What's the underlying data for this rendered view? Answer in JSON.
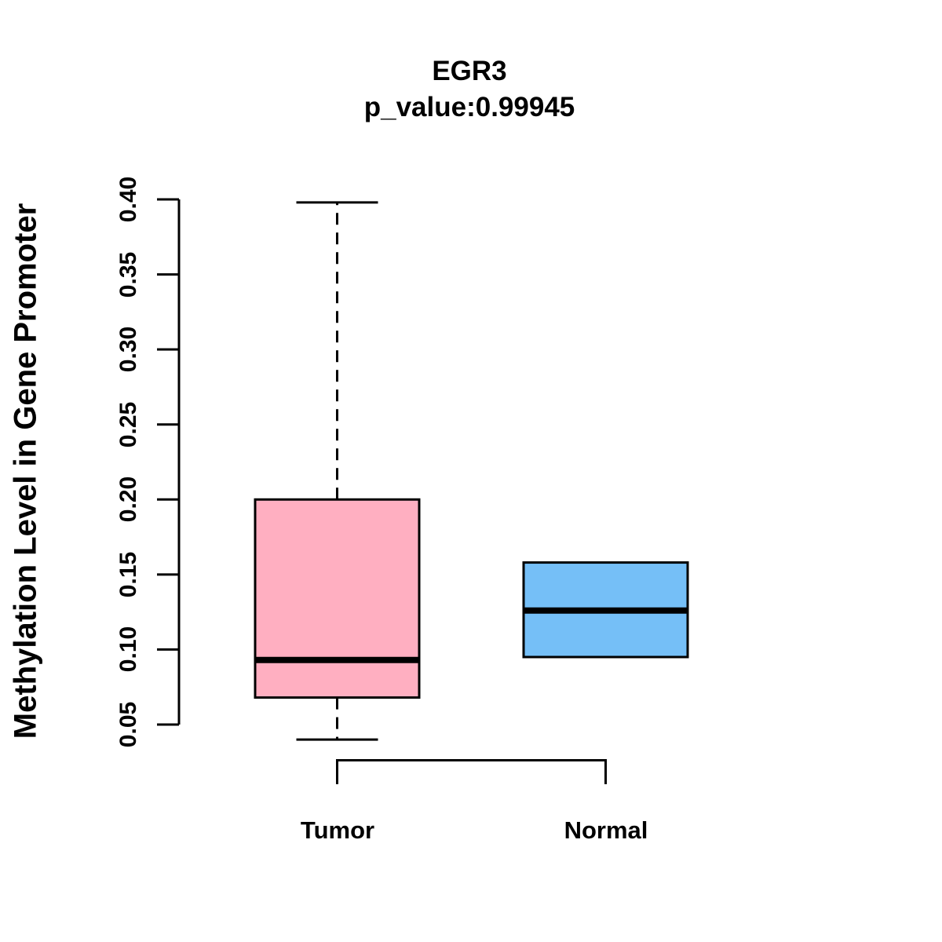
{
  "title": {
    "gene": "EGR3",
    "p_value_line": "p_value:0.99945"
  },
  "y_axis": {
    "label": "Methylation Level in Gene Promoter",
    "ticks": [
      "0.05",
      "0.10",
      "0.15",
      "0.20",
      "0.25",
      "0.30",
      "0.35",
      "0.40"
    ]
  },
  "x_axis": {
    "labels": [
      "Tumor",
      "Normal"
    ]
  },
  "colors": {
    "tumor_box": "#FFAFC1",
    "normal_box": "#75BFF7",
    "line": "#000000",
    "background": "#FFFFFF"
  },
  "chart_data": {
    "type": "boxplot",
    "title": "EGR3",
    "subtitle": "p_value:0.99945",
    "ylabel": "Methylation Level in Gene Promoter",
    "xlabel": "",
    "categories": [
      "Tumor",
      "Normal"
    ],
    "yticks": [
      0.05,
      0.1,
      0.15,
      0.2,
      0.25,
      0.3,
      0.35,
      0.4
    ],
    "ytick_labels": [
      "0.05",
      "0.10",
      "0.15",
      "0.20",
      "0.25",
      "0.30",
      "0.35",
      "0.40"
    ],
    "ylim": [
      0.04,
      0.4
    ],
    "grid": false,
    "legend": "none",
    "series": [
      {
        "name": "Tumor",
        "color": "#FFAFC1",
        "lower_whisker": 0.04,
        "q1": 0.068,
        "median": 0.093,
        "q3": 0.2,
        "upper_whisker": 0.398,
        "whisker_style": "dashed"
      },
      {
        "name": "Normal",
        "color": "#75BFF7",
        "lower_whisker": null,
        "q1": 0.095,
        "median": 0.126,
        "q3": 0.158,
        "upper_whisker": null,
        "whisker_style": "dashed"
      }
    ],
    "comparison_bracket": {
      "between": [
        "Tumor",
        "Normal"
      ],
      "label": ""
    }
  }
}
